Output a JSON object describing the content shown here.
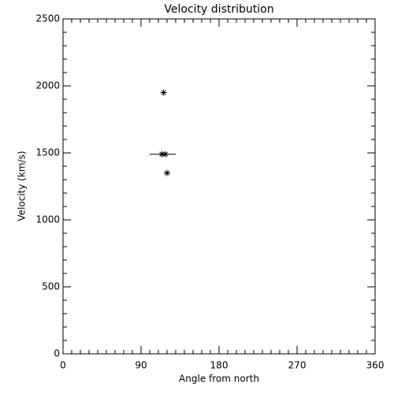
{
  "chart_data": {
    "type": "scatter",
    "title": "Velocity distribution",
    "xlabel": "Angle from north",
    "ylabel": "Velocity (km/s)",
    "x": [
      116,
      120,
      114,
      118
    ],
    "y": [
      1950,
      1350,
      1490,
      1490
    ],
    "errorbar": {
      "x": 115,
      "y": 1490,
      "xerr": 15
    },
    "xlim": [
      0,
      360
    ],
    "ylim": [
      0,
      2500
    ],
    "xticks": [
      0,
      90,
      180,
      270,
      360
    ],
    "yticks": [
      0,
      500,
      1000,
      1500,
      2000,
      2500
    ],
    "color": "#000000"
  }
}
